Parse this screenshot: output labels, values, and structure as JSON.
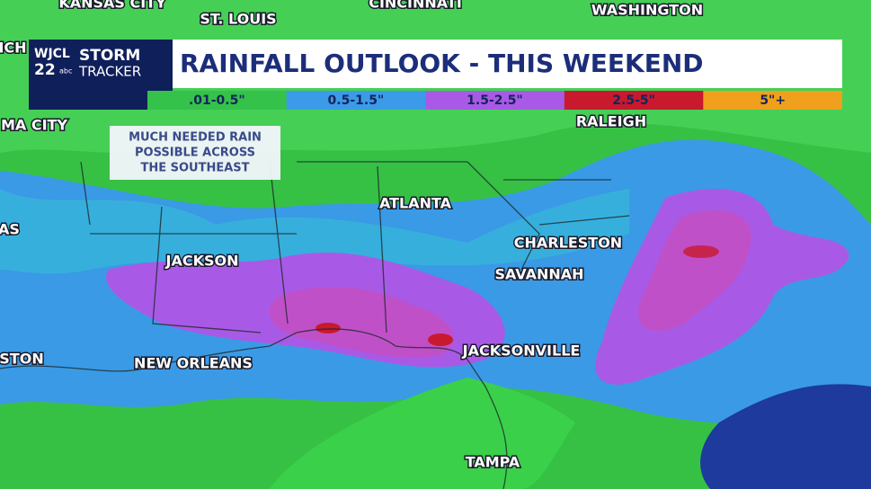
{
  "logo": {
    "station": "WJCL",
    "channel": "22",
    "network": "abc",
    "brand_top": "STORM",
    "brand_bottom": "TRACKER"
  },
  "header": {
    "title": "RAINFALL OUTLOOK - THIS WEEKEND"
  },
  "legend": [
    {
      "label": ".01-0.5\"",
      "color": "#34c24a"
    },
    {
      "label": "0.5-1.5\"",
      "color": "#3b9be8"
    },
    {
      "label": "1.5-2.5\"",
      "color": "#a85ae6"
    },
    {
      "label": "2.5-5\"",
      "color": "#c8192e"
    },
    {
      "label": "5\"+",
      "color": "#f0a01c"
    }
  ],
  "note": [
    "MUCH NEEDED RAIN",
    "POSSIBLE ACROSS",
    "THE SOUTHEAST"
  ],
  "cities": [
    "KANSAS CITY",
    "ST. LOUIS",
    "CINCINNATI",
    "WASHINGTON",
    "ICH",
    "RALEIGH",
    "MA CITY",
    "AS",
    "STON",
    "JACKSON",
    "ATLANTA",
    "CHARLESTON",
    "SAVANNAH",
    "NEW ORLEANS",
    "JACKSONVILLE",
    "TAMPA"
  ]
}
